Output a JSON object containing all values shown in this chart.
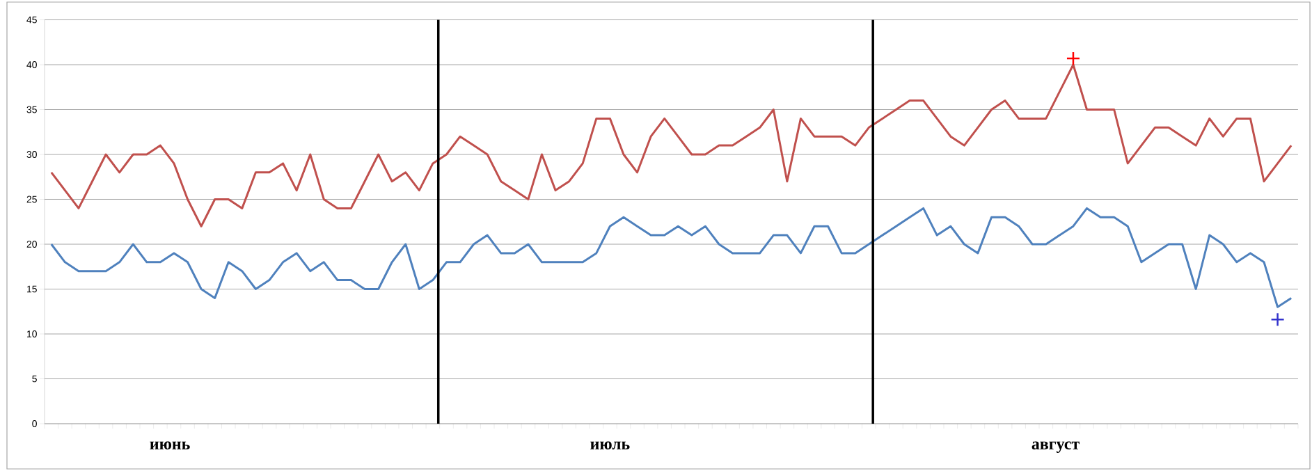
{
  "chart_data": {
    "type": "line",
    "categories": [
      null,
      null,
      null,
      null,
      null,
      null,
      null,
      null,
      null,
      null,
      null,
      null,
      null,
      null,
      null,
      null,
      null,
      null,
      null,
      null,
      null,
      null,
      null,
      null,
      null,
      null,
      null,
      null,
      null,
      null,
      null,
      null,
      null,
      null,
      null,
      null,
      null,
      null,
      null,
      null,
      null,
      null,
      null,
      null,
      null,
      null,
      null,
      null,
      null,
      null,
      null,
      null,
      null,
      null,
      null,
      null,
      null,
      null,
      null,
      null,
      null,
      null,
      null,
      null,
      null,
      null,
      null,
      null,
      null,
      null,
      null,
      null,
      null,
      null,
      null,
      null,
      null,
      null,
      null,
      null,
      null,
      null,
      null,
      null,
      null,
      null,
      null,
      null,
      null,
      null,
      null,
      null
    ],
    "series": [
      {
        "color": "#c0504d",
        "values": [
          28,
          26,
          24,
          27,
          30,
          28,
          30,
          30,
          31,
          29,
          25,
          22,
          25,
          25,
          24,
          28,
          28,
          29,
          26,
          30,
          25,
          24,
          24,
          27,
          30,
          27,
          28,
          26,
          29,
          30,
          32,
          31,
          30,
          27,
          26,
          25,
          30,
          26,
          27,
          29,
          34,
          34,
          30,
          28,
          32,
          34,
          32,
          30,
          30,
          31,
          31,
          32,
          33,
          35,
          27,
          34,
          32,
          32,
          32,
          31,
          33,
          34,
          35,
          36,
          36,
          34,
          32,
          31,
          33,
          35,
          36,
          34,
          34,
          34,
          37,
          40,
          35,
          35,
          35,
          29,
          31,
          33,
          33,
          32,
          31,
          34,
          32,
          34,
          34,
          27,
          29,
          31
        ]
      },
      {
        "color": "#4f81bd",
        "values": [
          20,
          18,
          17,
          17,
          17,
          18,
          20,
          18,
          18,
          19,
          18,
          15,
          14,
          18,
          17,
          15,
          16,
          18,
          19,
          17,
          18,
          16,
          16,
          15,
          15,
          18,
          20,
          15,
          16,
          18,
          18,
          20,
          21,
          19,
          19,
          20,
          18,
          18,
          18,
          18,
          19,
          22,
          23,
          22,
          21,
          21,
          22,
          21,
          22,
          20,
          19,
          19,
          19,
          21,
          21,
          19,
          22,
          22,
          19,
          19,
          20,
          21,
          22,
          23,
          24,
          21,
          22,
          20,
          19,
          23,
          23,
          22,
          20,
          20,
          21,
          22,
          24,
          23,
          23,
          22,
          18,
          19,
          20,
          20,
          15,
          21,
          20,
          18,
          19,
          18,
          13,
          14
        ]
      },
      {
        "type": "scatter",
        "marker": "cross",
        "color": "#ff0000",
        "values": [
          null,
          null,
          null,
          null,
          null,
          null,
          null,
          null,
          null,
          null,
          null,
          null,
          null,
          null,
          null,
          null,
          null,
          null,
          null,
          null,
          null,
          null,
          null,
          null,
          null,
          null,
          null,
          null,
          null,
          null,
          null,
          null,
          null,
          null,
          null,
          null,
          null,
          null,
          null,
          null,
          null,
          null,
          null,
          null,
          null,
          null,
          null,
          null,
          null,
          null,
          null,
          null,
          null,
          null,
          null,
          null,
          null,
          null,
          null,
          null,
          null,
          null,
          null,
          null,
          null,
          null,
          null,
          null,
          null,
          null,
          null,
          null,
          null,
          null,
          null,
          40.7,
          null,
          null,
          null,
          null,
          null,
          null,
          null,
          null,
          null,
          null,
          null,
          null,
          null,
          null,
          null,
          null
        ]
      },
      {
        "type": "scatter",
        "marker": "cross",
        "color": "#3333cc",
        "values": [
          null,
          null,
          null,
          null,
          null,
          null,
          null,
          null,
          null,
          null,
          null,
          null,
          null,
          null,
          null,
          null,
          null,
          null,
          null,
          null,
          null,
          null,
          null,
          null,
          null,
          null,
          null,
          null,
          null,
          null,
          null,
          null,
          null,
          null,
          null,
          null,
          null,
          null,
          null,
          null,
          null,
          null,
          null,
          null,
          null,
          null,
          null,
          null,
          null,
          null,
          null,
          null,
          null,
          null,
          null,
          null,
          null,
          null,
          null,
          null,
          null,
          null,
          null,
          null,
          null,
          null,
          null,
          null,
          null,
          null,
          null,
          null,
          null,
          null,
          null,
          null,
          null,
          null,
          null,
          null,
          null,
          null,
          null,
          null,
          null,
          null,
          null,
          null,
          null,
          null,
          11.6,
          null
        ]
      }
    ],
    "ylim": [
      0,
      45
    ],
    "yticks": [
      0,
      5,
      10,
      15,
      20,
      25,
      30,
      35,
      40,
      45
    ],
    "grid": "y",
    "tick_labels": "y",
    "marker": "none",
    "line_style": "solid",
    "annotations": [
      "июнь",
      "июль",
      "август"
    ]
  }
}
